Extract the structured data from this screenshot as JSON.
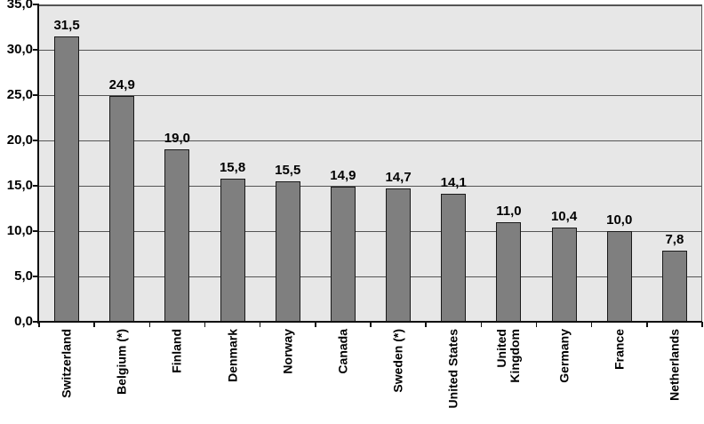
{
  "chart_data": {
    "type": "bar",
    "title": "",
    "xlabel": "",
    "ylabel": "",
    "categories": [
      "Switzerland",
      "Belgium (*)",
      "Finland",
      "Denmark",
      "Norway",
      "Canada",
      "Sweden (*)",
      "United States",
      "United Kingdom",
      "Germany",
      "France",
      "Netherlands"
    ],
    "category_display": [
      "Switzerland",
      "Belgium (*)",
      "Finland",
      "Denmark",
      "Norway",
      "Canada",
      "Sweden (*)",
      "United States",
      "United\nKingdom",
      "Germany",
      "France",
      "Netherlands"
    ],
    "values": [
      31.5,
      24.9,
      19.0,
      15.8,
      15.5,
      14.9,
      14.7,
      14.1,
      11.0,
      10.4,
      10.0,
      7.8
    ],
    "value_labels": [
      "31,5",
      "24,9",
      "19,0",
      "15,8",
      "15,5",
      "14,9",
      "14,7",
      "14,1",
      "11,0",
      "10,4",
      "10,0",
      "7,8"
    ],
    "y_tick_labels": [
      "35,0",
      "30,0",
      "25,0",
      "20,0",
      "15,0",
      "10,0",
      "5,0",
      "0,0"
    ],
    "y_tick_values": [
      35,
      30,
      25,
      20,
      15,
      10,
      5,
      0
    ],
    "ylim": [
      0,
      35
    ],
    "y_tick_step": 5,
    "grid": true,
    "legend": "none",
    "decimal_separator": ",",
    "colors": {
      "bar_fill": "#7f7f7f",
      "bar_border": "#1a1a1a",
      "plot_background": "#e7e7e7",
      "gridline": "#555555",
      "axis": "#111111",
      "text": "#000000",
      "outer_background": "#ffffff"
    }
  }
}
